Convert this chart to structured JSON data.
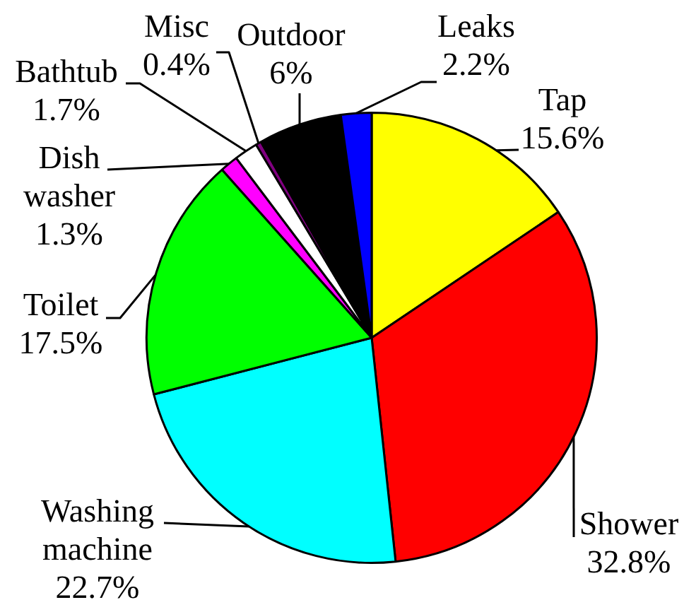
{
  "chart_data": {
    "type": "pie",
    "categories": [
      "Tap",
      "Shower",
      "Washing machine",
      "Toilet",
      "Dish washer",
      "Bathtub",
      "Misc",
      "Outdoor",
      "Leaks"
    ],
    "values": [
      15.6,
      32.8,
      22.7,
      17.5,
      1.3,
      1.7,
      0.4,
      6,
      2.2
    ],
    "colors": [
      "#ffff00",
      "#ff0000",
      "#00ffff",
      "#00ff00",
      "#ff00ff",
      "#ffffff",
      "#800080",
      "#000000",
      "#0000ff"
    ],
    "value_labels": [
      "15.6%",
      "32.8%",
      "22.7%",
      "17.5%",
      "1.3%",
      "1.7%",
      "0.4%",
      "6%",
      "2.2%"
    ]
  }
}
